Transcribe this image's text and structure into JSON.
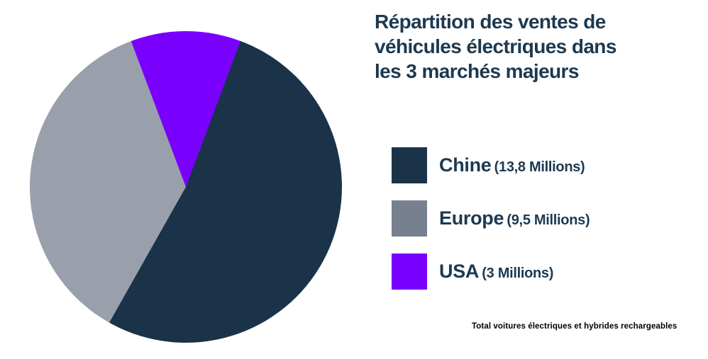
{
  "title_lines": [
    "Répartition des ventes de",
    "véhicules électriques dans",
    "les 3 marchés majeurs"
  ],
  "footer_note": "Total voitures électriques et hybrides rechargeables",
  "colors": {
    "background": "#ffffff",
    "title_text": "#1C3950",
    "legend_text": "#1C3950",
    "footnote_text": "#000000",
    "navy": "#1B3349",
    "gray_pie": "#99A0AB",
    "gray_legend": "#76808F",
    "purple": "#7A00FE"
  },
  "legend": [
    {
      "label": "Chine",
      "detail": "(13,8 Millions)",
      "color": "#1B3349"
    },
    {
      "label": "Europe",
      "detail": "(9,5 Millions)",
      "color": "#76808F"
    },
    {
      "label": "USA",
      "detail": "(3 Millions)",
      "color": "#7A00FE"
    }
  ],
  "chart_data": {
    "type": "pie",
    "title": "Répartition des ventes de véhicules électriques dans les 3 marchés majeurs",
    "labels": [
      "Chine",
      "Europe",
      "USA"
    ],
    "values": [
      13.8,
      9.5,
      3
    ],
    "unit": "Millions",
    "colors": [
      "#1B3349",
      "#99A0AB",
      "#7A00FE"
    ],
    "rotation_deg": 20.5,
    "direction": "clockwise",
    "start_reference": "12-o-clock",
    "legend_position": "right",
    "note": "Total voitures électriques et hybrides rechargeables"
  }
}
